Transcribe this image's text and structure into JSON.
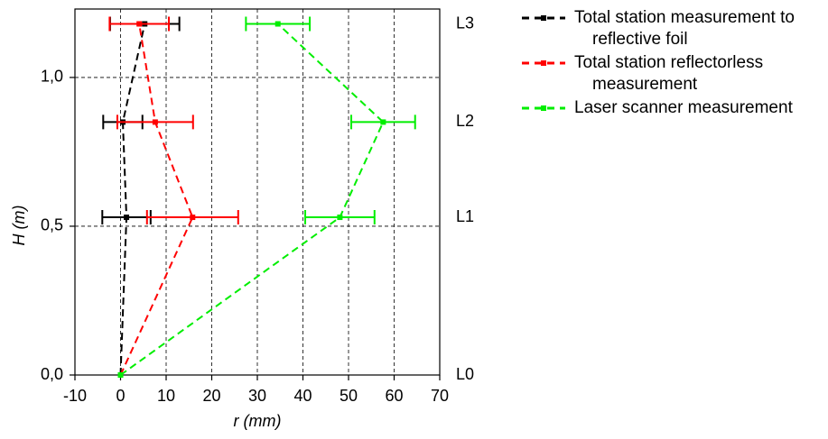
{
  "chart_data": {
    "type": "line",
    "xlabel": "r (mm)",
    "ylabel": "H (m)",
    "xlim": [
      -10,
      70
    ],
    "ylim": [
      0,
      1.23
    ],
    "xticks": [
      -10,
      0,
      10,
      20,
      30,
      40,
      50,
      60,
      70
    ],
    "yticks": [
      {
        "value": 0,
        "label": "0,0"
      },
      {
        "value": 0.5,
        "label": "0,5"
      },
      {
        "value": 1,
        "label": "1,0"
      }
    ],
    "grid": true,
    "legend": "outside-right",
    "annotations": [
      {
        "text": "L0",
        "y": 0
      },
      {
        "text": "L1",
        "y": 0.53
      },
      {
        "text": "L2",
        "y": 0.85
      },
      {
        "text": "L3",
        "y": 1.18
      }
    ],
    "series": [
      {
        "name": "Total station measurement to reflective foil",
        "color": "#000000",
        "x": [
          0,
          1.3,
          0.5,
          5.3
        ],
        "y": [
          0,
          0.53,
          0.85,
          1.18
        ],
        "xerr": [
          null,
          5.3,
          4.3,
          7.6
        ]
      },
      {
        "name": "Total station reflectorless measurement",
        "color": "#ff0000",
        "x": [
          0,
          15.8,
          7.6,
          4.1
        ],
        "y": [
          0,
          0.53,
          0.85,
          1.18
        ],
        "xerr": [
          null,
          10,
          8.3,
          6.5
        ]
      },
      {
        "name": "Laser scanner measurement",
        "color": "#00ee00",
        "x": [
          0,
          48.1,
          57.6,
          34.5
        ],
        "y": [
          0,
          0.53,
          0.85,
          1.18
        ],
        "xerr": [
          null,
          7.6,
          7,
          7
        ]
      }
    ]
  }
}
